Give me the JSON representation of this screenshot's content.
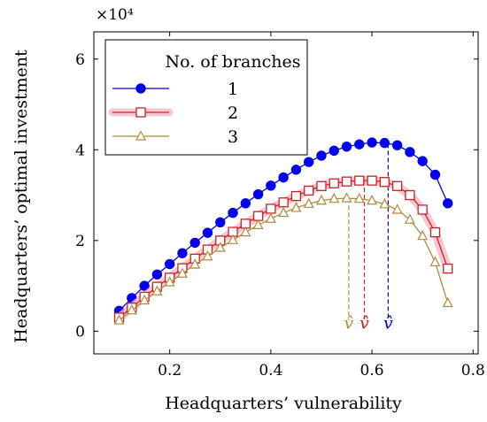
{
  "chart_data": {
    "type": "line",
    "xlabel": "Headquarters’ vulnerability",
    "ylabel": "Headquarters’ optimal investment",
    "y_multiplier_label": "×10⁴",
    "xlim": [
      0.05,
      0.81
    ],
    "ylim": [
      -0.5,
      6.6
    ],
    "x_ticks": [
      0.2,
      0.4,
      0.6,
      0.8
    ],
    "x_tick_labels": [
      "0.2",
      "0.4",
      "0.6",
      "0.8"
    ],
    "y_ticks": [
      0,
      2,
      4,
      6
    ],
    "y_tick_labels": [
      "0",
      "2",
      "4",
      "6"
    ],
    "grid": false,
    "legend": {
      "title": "No. of branches",
      "placement": "top-left"
    },
    "series": [
      {
        "name": "1",
        "color": "#0000ee",
        "marker": "circle",
        "x": [
          0.1,
          0.125,
          0.15,
          0.175,
          0.2,
          0.225,
          0.25,
          0.275,
          0.3,
          0.325,
          0.35,
          0.375,
          0.4,
          0.425,
          0.45,
          0.475,
          0.5,
          0.525,
          0.55,
          0.575,
          0.6,
          0.625,
          0.65,
          0.675,
          0.7,
          0.725,
          0.75
        ],
        "values": [
          0.45,
          0.73,
          1.0,
          1.25,
          1.48,
          1.72,
          1.95,
          2.17,
          2.4,
          2.61,
          2.82,
          3.02,
          3.21,
          3.39,
          3.56,
          3.73,
          3.87,
          3.98,
          4.07,
          4.12,
          4.16,
          4.15,
          4.1,
          3.95,
          3.75,
          3.45,
          2.82
        ]
      },
      {
        "name": "2",
        "color": "#cc2222",
        "marker": "square",
        "highlight": "#f7b8c6",
        "x": [
          0.1,
          0.125,
          0.15,
          0.175,
          0.2,
          0.225,
          0.25,
          0.275,
          0.3,
          0.325,
          0.35,
          0.375,
          0.4,
          0.425,
          0.45,
          0.475,
          0.5,
          0.525,
          0.55,
          0.575,
          0.6,
          0.625,
          0.65,
          0.675,
          0.7,
          0.725,
          0.75
        ],
        "values": [
          0.3,
          0.52,
          0.76,
          0.98,
          1.18,
          1.39,
          1.6,
          1.8,
          2.0,
          2.19,
          2.37,
          2.54,
          2.7,
          2.84,
          2.98,
          3.1,
          3.2,
          3.26,
          3.3,
          3.32,
          3.32,
          3.29,
          3.2,
          3.0,
          2.68,
          2.18,
          1.38
        ]
      },
      {
        "name": "3",
        "color": "#b38a3c",
        "marker": "triangle",
        "x": [
          0.1,
          0.125,
          0.15,
          0.175,
          0.2,
          0.225,
          0.25,
          0.275,
          0.3,
          0.325,
          0.35,
          0.375,
          0.4,
          0.425,
          0.45,
          0.475,
          0.5,
          0.525,
          0.55,
          0.575,
          0.6,
          0.625,
          0.65,
          0.675,
          0.7,
          0.725,
          0.75
        ],
        "values": [
          0.24,
          0.46,
          0.68,
          0.88,
          1.08,
          1.27,
          1.47,
          1.65,
          1.84,
          2.01,
          2.18,
          2.34,
          2.48,
          2.61,
          2.72,
          2.81,
          2.88,
          2.92,
          2.93,
          2.92,
          2.88,
          2.8,
          2.68,
          2.46,
          2.1,
          1.52,
          0.62
        ]
      }
    ],
    "annotations": [
      {
        "label": "v̂",
        "x": 0.554,
        "color": "#b38a3c"
      },
      {
        "label": "v̂",
        "x": 0.585,
        "color": "#cc2222"
      },
      {
        "label": "v̂",
        "x": 0.632,
        "color": "#0000ee"
      }
    ]
  }
}
